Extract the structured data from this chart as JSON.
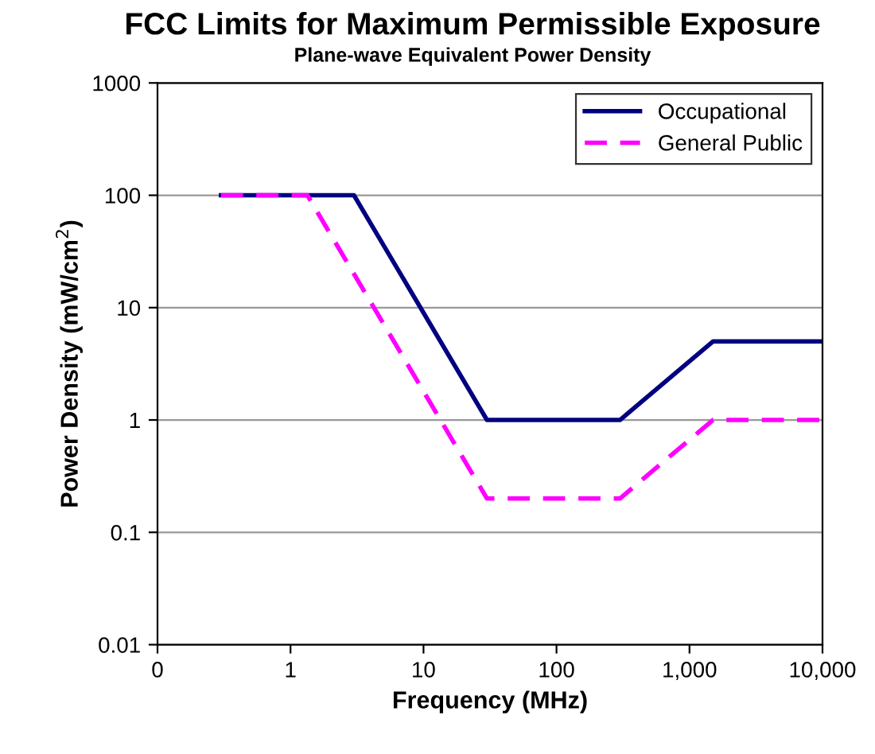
{
  "chart_data": {
    "type": "line",
    "title": "FCC Limits for Maximum Permissible Exposure",
    "subtitle": "Plane-wave Equivalent Power Density",
    "xlabel": "Frequency (MHz)",
    "ylabel": "Power Density (mW/cm$^{2}$)",
    "log": "xy",
    "xlim": [
      0.1,
      10000
    ],
    "ylim": [
      0.01,
      1000
    ],
    "xticks": [
      {
        "value": 0.1,
        "label": "0"
      },
      1,
      10,
      100,
      {
        "value": 1000,
        "label": "1,000"
      },
      {
        "value": 10000,
        "label": "10,000"
      }
    ],
    "yticks": [
      0.01,
      0.1,
      1,
      10,
      100,
      1000
    ],
    "grid": "y",
    "legend": "top right",
    "series": [
      {
        "name": "Occupational",
        "color": "#000080",
        "line_style": "solid",
        "x": [
          0.3,
          3,
          30,
          300,
          1500,
          10000
        ],
        "values": [
          100,
          100,
          1,
          1,
          5,
          5
        ]
      },
      {
        "name": "General Public",
        "color": "#ff00ff",
        "line_style": "dashed",
        "x": [
          0.3,
          1.34,
          30,
          300,
          1500,
          10000
        ],
        "values": [
          100,
          100,
          0.2,
          0.2,
          1,
          1
        ]
      }
    ]
  }
}
